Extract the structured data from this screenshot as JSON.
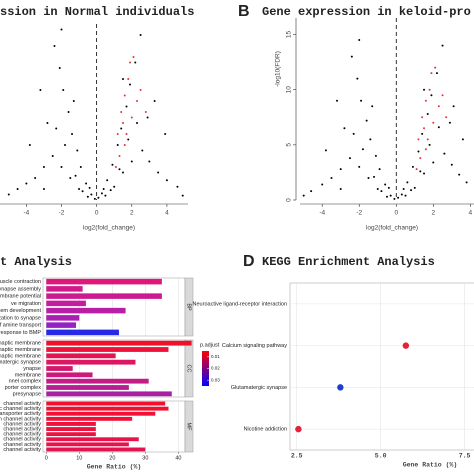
{
  "chart_data": [
    {
      "type": "volcano",
      "title": "ssion in Normal individuals",
      "x_label": "log2(fold_change)",
      "xlim": [
        -5.5,
        5.2
      ],
      "ylim": [
        0,
        16
      ],
      "xticks": [
        -4,
        -2,
        0,
        2,
        4
      ],
      "vline": 0,
      "series": [
        {
          "color": "#000000",
          "x": [
            -0.3,
            0.3,
            -0.6,
            0.6,
            -0.9,
            0.9,
            -1.1,
            1.2,
            -1.4,
            1.4,
            -1.6,
            1.7,
            -1.9,
            1.9,
            -2.1,
            2.2,
            -0.5,
            0.5,
            -1,
            1,
            -1.5,
            1.5,
            -2,
            2,
            -2.5,
            2.6,
            -3,
            3,
            -3.5,
            3.5,
            -4,
            4,
            -4.5,
            4.6,
            -2.8,
            2.9,
            -3.2,
            3.3,
            -2.4,
            2.5,
            -0.1,
            0.1,
            -0.8,
            0.8,
            -1.2,
            1.3,
            -1.8,
            1.8,
            -2.3,
            2.3,
            -3.8,
            3.9,
            -1.3,
            1.5,
            -2,
            0.4,
            -0.4,
            -5,
            4.9,
            -3
          ],
          "y": [
            0.5,
            0.6,
            1.5,
            1.8,
            3,
            3.2,
            4.5,
            5,
            6,
            6.5,
            8,
            8.5,
            10,
            10.5,
            12,
            12.5,
            0.3,
            0.4,
            1,
            1.2,
            2,
            2.5,
            3,
            3.5,
            4,
            4.5,
            3,
            3.5,
            2,
            2.5,
            1.5,
            1.8,
            1,
            1.2,
            7,
            7.5,
            10,
            9,
            14,
            15,
            0.1,
            0.2,
            0.8,
            0.9,
            2.2,
            2.8,
            5,
            5.5,
            6.5,
            7,
            5,
            6,
            9,
            11,
            15.5,
            1,
            1.1,
            0.5,
            0.4,
            1
          ]
        },
        {
          "color": "#e8313a",
          "x": [
            1.2,
            1.4,
            1.6,
            1.3,
            1.8,
            1.5,
            2.1,
            1.7,
            2.3,
            1.9,
            1.1,
            2.5,
            2,
            1.6,
            2.8
          ],
          "y": [
            6,
            8,
            9.5,
            4,
            11,
            7,
            13,
            6,
            9,
            12.5,
            3,
            10,
            7.5,
            5,
            8
          ]
        }
      ]
    },
    {
      "type": "volcano",
      "panel_label": "B",
      "title": "Gene expression in keloid-pro",
      "x_label": "log2(fold_change)",
      "y_label": "-log10(FDR)",
      "xlim": [
        -5.2,
        4.2
      ],
      "ylim": [
        0,
        16.5
      ],
      "xticks": [
        -4,
        -2,
        0,
        2,
        4
      ],
      "yticks": [
        0,
        5,
        10,
        15
      ],
      "vline": 0,
      "series": [
        {
          "color": "#000000",
          "x": [
            -0.3,
            0.3,
            -0.6,
            0.6,
            -0.9,
            0.9,
            -1.1,
            1.2,
            -1.4,
            1.4,
            -1.6,
            1.7,
            -1.9,
            1.9,
            -2.1,
            2.2,
            -0.5,
            0.5,
            -1,
            1,
            -1.5,
            1.5,
            -2,
            2,
            -2.5,
            2.6,
            -3,
            3,
            -3.5,
            3.4,
            -4,
            3.8,
            -4.6,
            -2.8,
            2.9,
            -3.2,
            3.1,
            -2.4,
            2.5,
            -0.1,
            0.1,
            -0.8,
            0.8,
            -1.2,
            1.3,
            -1.8,
            1.8,
            -2.3,
            2.3,
            -3.8,
            3.6,
            -1.3,
            1.5,
            -2,
            0.4,
            -0.4,
            -5,
            -3
          ],
          "y": [
            0.4,
            0.5,
            1.4,
            1.6,
            2.8,
            3,
            4,
            4.4,
            5.5,
            6,
            7.2,
            7.8,
            9,
            9.5,
            11,
            11.5,
            0.3,
            0.4,
            1,
            1.1,
            2,
            2.4,
            3,
            3.4,
            3.8,
            4.2,
            2.8,
            3.2,
            2,
            2.3,
            1.4,
            1.6,
            0.8,
            6.5,
            7,
            9,
            8.5,
            13,
            14,
            0.1,
            0.2,
            0.8,
            0.9,
            2.1,
            2.6,
            4.6,
            5,
            6,
            6.6,
            4.5,
            5.5,
            8.5,
            10,
            14.5,
            1,
            1.1,
            0.4,
            1
          ]
        },
        {
          "color": "#e8313a",
          "x": [
            1.2,
            1.4,
            1.6,
            1.3,
            1.8,
            1.5,
            2.1,
            1.7,
            2.3,
            1.9,
            1.1,
            2.5,
            2,
            1.6,
            2.7
          ],
          "y": [
            5.5,
            7.5,
            9,
            3.8,
            10,
            6.5,
            12,
            5.5,
            8.5,
            11.5,
            2.8,
            9.5,
            7,
            4.6,
            7.5
          ]
        }
      ]
    },
    {
      "type": "faceted-barh",
      "title": "t Analysis",
      "x_label": "Gene Ratio (%)",
      "xlim": [
        -1,
        42
      ],
      "xticks": [
        0,
        10,
        20,
        30,
        40
      ],
      "legend_title": "p.adjust",
      "legend_lim": [
        0.005,
        0.035
      ],
      "legend_ticks": [
        0.01,
        0.02,
        0.03
      ],
      "legend_colors": [
        "#ff0000",
        "#0000ff"
      ],
      "facets": [
        {
          "label": "BP",
          "categories": [
            "muscle contraction",
            "presynapse assembly",
            "membrane potential",
            "ve migration",
            "system development",
            "alization to synapse",
            "of amine transport",
            "response to BMP"
          ],
          "values": [
            35,
            11,
            35,
            12,
            24,
            10,
            9,
            22
          ],
          "colors": [
            "#e0177a",
            "#d4188a",
            "#cc1b92",
            "#c41c9c",
            "#b81ea6",
            "#aa20b2",
            "#9422c4",
            "#2828e8"
          ]
        },
        {
          "label": "CC",
          "categories": [
            "ynaptic membrane",
            "synaptic membrane",
            "synaptic membrane",
            "tamatergic synapse",
            "ynapse",
            "membrane",
            "nnel complex",
            "porter complex",
            "presynapse"
          ],
          "values": [
            44,
            37,
            21,
            27,
            8,
            14,
            31,
            25,
            38
          ],
          "colors": [
            "#f0102a",
            "#ec1238",
            "#e21550",
            "#da1760",
            "#d2186e",
            "#ca1a7c",
            "#c21c88",
            "#b81e94",
            "#aa20a4"
          ]
        },
        {
          "label": "MF",
          "categories": [
            "channel activity",
            "ific channel activity",
            "transporter activity",
            "ion channel activity",
            "channel activity",
            "channel activity",
            "channel activity",
            "channel activity",
            "channel activity",
            "channel activity"
          ],
          "values": [
            36,
            37,
            33,
            26,
            15,
            15,
            15,
            28,
            25,
            30
          ],
          "colors": [
            "#f4102c",
            "#f21030",
            "#f01134",
            "#ee1238",
            "#ec123c",
            "#ea1340",
            "#e81344",
            "#e61448",
            "#e4144c",
            "#e21550"
          ]
        }
      ]
    },
    {
      "type": "dot",
      "panel_label": "D",
      "title": "KEGG Enrichment Analysis",
      "x_label": "Gene Ratio (%)",
      "xlim": [
        2.3,
        7.78
      ],
      "xticks": [
        2.5,
        {
          "value": 5,
          "label": "5.0"
        },
        7.5
      ],
      "categories": [
        "Neuroactive ligand-receptor interaction",
        "Calcium signaling pathway",
        "Glutamatergic synapse",
        "Nicotine addiction"
      ],
      "values": [
        null,
        5.75,
        3.8,
        2.55
      ],
      "colors": [
        "#e8213a",
        "#e8213a",
        "#1f3fd0",
        "#e8213a"
      ]
    }
  ]
}
